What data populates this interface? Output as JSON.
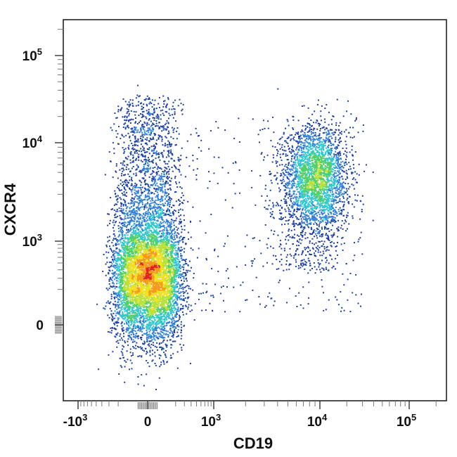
{
  "chart_data": {
    "type": "scatter",
    "subtype": "flow-cytometry-density-dot-plot",
    "xlabel": "CD19",
    "ylabel": "CXCR4",
    "x_scale": "biexponential",
    "y_scale": "biexponential",
    "xlim": [
      -2000,
      220000
    ],
    "ylim": [
      -800,
      260000
    ],
    "x_ticks": [
      {
        "value": -1000,
        "base": "-10",
        "exp": "3"
      },
      {
        "value": 0,
        "base": "0",
        "exp": ""
      },
      {
        "value": 1000,
        "base": "10",
        "exp": "3"
      },
      {
        "value": 10000,
        "base": "10",
        "exp": "4"
      },
      {
        "value": 100000,
        "base": "10",
        "exp": "5"
      }
    ],
    "y_ticks": [
      {
        "value": 0,
        "base": "0",
        "exp": ""
      },
      {
        "value": 1000,
        "base": "10",
        "exp": "3"
      },
      {
        "value": 10000,
        "base": "10",
        "exp": "4"
      },
      {
        "value": 100000,
        "base": "10",
        "exp": "5"
      }
    ],
    "grid": false,
    "legend": "none",
    "populations": [
      {
        "description": "CD19-negative cells",
        "x_center": 0,
        "y_center": 350,
        "y_range": [
          -300,
          2000
        ],
        "relative_density": "very high"
      },
      {
        "description": "CD19-negative CXCR4-high tail",
        "x_center": 0,
        "y_center": 9000,
        "y_range": [
          2000,
          30000
        ],
        "relative_density": "low"
      },
      {
        "description": "CD19-positive cells",
        "x_center": 9000,
        "y_center": 4500,
        "x_range": [
          3000,
          30000
        ],
        "y_range": [
          300,
          20000
        ],
        "relative_density": "medium"
      }
    ],
    "density_colors": [
      "#1a3fa8",
      "#2f7fd8",
      "#30c8d0",
      "#4fcf6a",
      "#b8e03a",
      "#f0e020",
      "#f59a1a",
      "#e02418"
    ]
  }
}
